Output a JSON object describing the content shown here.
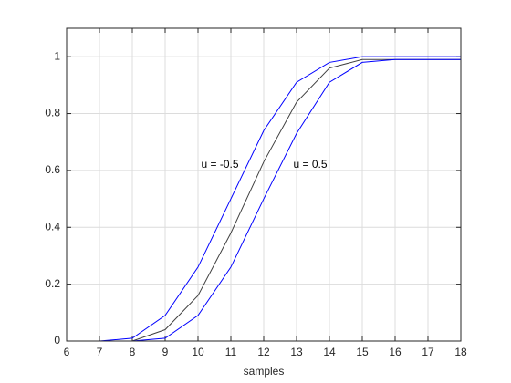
{
  "chart_data": {
    "type": "line",
    "x": [
      6,
      7,
      8,
      9,
      10,
      11,
      12,
      13,
      14,
      15,
      16,
      17,
      18
    ],
    "series": [
      {
        "color": "#0000ff",
        "values": [
          0,
          0,
          0.01,
          0.09,
          0.26,
          0.5,
          0.74,
          0.91,
          0.98,
          1,
          1,
          1,
          1
        ]
      },
      {
        "color": "#404040",
        "values": [
          0,
          0,
          0,
          0.04,
          0.16,
          0.38,
          0.63,
          0.84,
          0.96,
          0.99,
          0.99,
          0.99,
          0.99
        ]
      },
      {
        "color": "#0000ff",
        "values": [
          0,
          0,
          0,
          0.01,
          0.09,
          0.26,
          0.5,
          0.73,
          0.91,
          0.98,
          0.99,
          0.99,
          0.99
        ]
      }
    ],
    "annotations": [
      "u = -0.5",
      "u = 0.5"
    ],
    "xlabel": "samples",
    "xlim": [
      6,
      18
    ],
    "ylim": [
      0,
      1.1
    ],
    "xticks": [
      6,
      7,
      8,
      9,
      10,
      11,
      12,
      13,
      14,
      15,
      16,
      17,
      18
    ],
    "yticks": [
      0,
      0.2,
      0.4,
      0.6,
      0.8,
      1
    ],
    "grid": true
  }
}
